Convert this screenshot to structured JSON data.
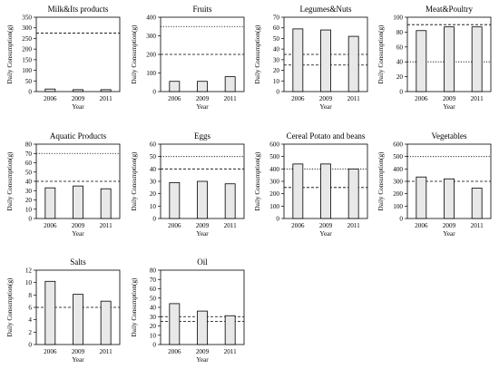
{
  "chart_data": [
    {
      "type": "bar",
      "title": "Milk&Its products",
      "xlabel": "Year",
      "ylabel": "Daily Consumption(g)",
      "categories": [
        "2006",
        "2009",
        "2011"
      ],
      "values": [
        12,
        9,
        9
      ],
      "ylim": [
        0,
        350
      ],
      "yticks": [
        0,
        50,
        100,
        150,
        200,
        250,
        300,
        350
      ],
      "reference_lines": [
        {
          "value": 275,
          "style": "dashed"
        }
      ]
    },
    {
      "type": "bar",
      "title": "Fruits",
      "xlabel": "Year",
      "ylabel": "Daily Consumption(g)",
      "categories": [
        "2006",
        "2009",
        "2011"
      ],
      "values": [
        55,
        55,
        80
      ],
      "ylim": [
        0,
        400
      ],
      "yticks": [
        0,
        100,
        200,
        300,
        400
      ],
      "reference_lines": [
        {
          "value": 200,
          "style": "dashed"
        },
        {
          "value": 350,
          "style": "dotted"
        }
      ]
    },
    {
      "type": "bar",
      "title": "Legumes&Nuts",
      "xlabel": "Year",
      "ylabel": "Daily Consumption(g)",
      "categories": [
        "2006",
        "2009",
        "2011"
      ],
      "values": [
        59,
        58,
        52
      ],
      "ylim": [
        0,
        70
      ],
      "yticks": [
        0,
        10,
        20,
        30,
        40,
        50,
        60,
        70
      ],
      "reference_lines": [
        {
          "value": 25,
          "style": "dashed"
        },
        {
          "value": 35,
          "style": "dashed"
        }
      ]
    },
    {
      "type": "bar",
      "title": "Meat&Poultry",
      "xlabel": "Year",
      "ylabel": "Daily Consumption(g)",
      "categories": [
        "2006",
        "2009",
        "2011"
      ],
      "values": [
        82,
        87,
        87
      ],
      "ylim": [
        0,
        100
      ],
      "yticks": [
        0,
        20,
        40,
        60,
        80,
        100
      ],
      "reference_lines": [
        {
          "value": 40,
          "style": "dotted"
        },
        {
          "value": 90,
          "style": "dashed"
        }
      ]
    },
    {
      "type": "bar",
      "title": "Aquatic Products",
      "xlabel": "Year",
      "ylabel": "Daily Consumption(g)",
      "categories": [
        "2006",
        "2009",
        "2011"
      ],
      "values": [
        33,
        35,
        32
      ],
      "ylim": [
        0,
        80
      ],
      "yticks": [
        0,
        10,
        20,
        30,
        40,
        50,
        60,
        70,
        80
      ],
      "reference_lines": [
        {
          "value": 40,
          "style": "dashed"
        },
        {
          "value": 70,
          "style": "dotted"
        }
      ]
    },
    {
      "type": "bar",
      "title": "Eggs",
      "xlabel": "Year",
      "ylabel": "Daily Consumption(g)",
      "categories": [
        "2006",
        "2009",
        "2011"
      ],
      "values": [
        29,
        30,
        28
      ],
      "ylim": [
        0,
        60
      ],
      "yticks": [
        0,
        10,
        20,
        30,
        40,
        50,
        60
      ],
      "reference_lines": [
        {
          "value": 40,
          "style": "dashed"
        },
        {
          "value": 50,
          "style": "dotted"
        }
      ]
    },
    {
      "type": "bar",
      "title": "Cereal Potato and beans",
      "xlabel": "Year",
      "ylabel": "Daily Consumption(g)",
      "categories": [
        "2006",
        "2009",
        "2011"
      ],
      "values": [
        440,
        440,
        400
      ],
      "ylim": [
        0,
        600
      ],
      "yticks": [
        0,
        100,
        200,
        300,
        400,
        500,
        600
      ],
      "reference_lines": [
        {
          "value": 250,
          "style": "dashed"
        },
        {
          "value": 400,
          "style": "dotted"
        }
      ]
    },
    {
      "type": "bar",
      "title": "Vegetables",
      "xlabel": "Year",
      "ylabel": "Daily Consumption(g)",
      "categories": [
        "2006",
        "2009",
        "2011"
      ],
      "values": [
        335,
        320,
        245
      ],
      "ylim": [
        0,
        600
      ],
      "yticks": [
        0,
        100,
        200,
        300,
        400,
        500,
        600
      ],
      "reference_lines": [
        {
          "value": 300,
          "style": "dashed"
        },
        {
          "value": 500,
          "style": "dotted"
        }
      ]
    },
    {
      "type": "bar",
      "title": "Salts",
      "xlabel": "Year",
      "ylabel": "Daily Consumption(g)",
      "categories": [
        "2006",
        "2009",
        "2011"
      ],
      "values": [
        10.2,
        8.1,
        7
      ],
      "ylim": [
        0,
        12
      ],
      "yticks": [
        0,
        2,
        4,
        6,
        8,
        10,
        12
      ],
      "reference_lines": [
        {
          "value": 6,
          "style": "dashed"
        }
      ]
    },
    {
      "type": "bar",
      "title": "Oil",
      "xlabel": "Year",
      "ylabel": "Daily Consumption(g)",
      "categories": [
        "2006",
        "2009",
        "2011"
      ],
      "values": [
        44,
        36,
        31
      ],
      "ylim": [
        0,
        80
      ],
      "yticks": [
        0,
        10,
        20,
        30,
        40,
        50,
        60,
        70,
        80
      ],
      "reference_lines": [
        {
          "value": 25,
          "style": "dashed"
        },
        {
          "value": 30,
          "style": "dashed"
        }
      ]
    }
  ],
  "style": {
    "bar_fill": "#e8e8e8",
    "bar_stroke": "#000000",
    "axis_color": "#000000"
  }
}
